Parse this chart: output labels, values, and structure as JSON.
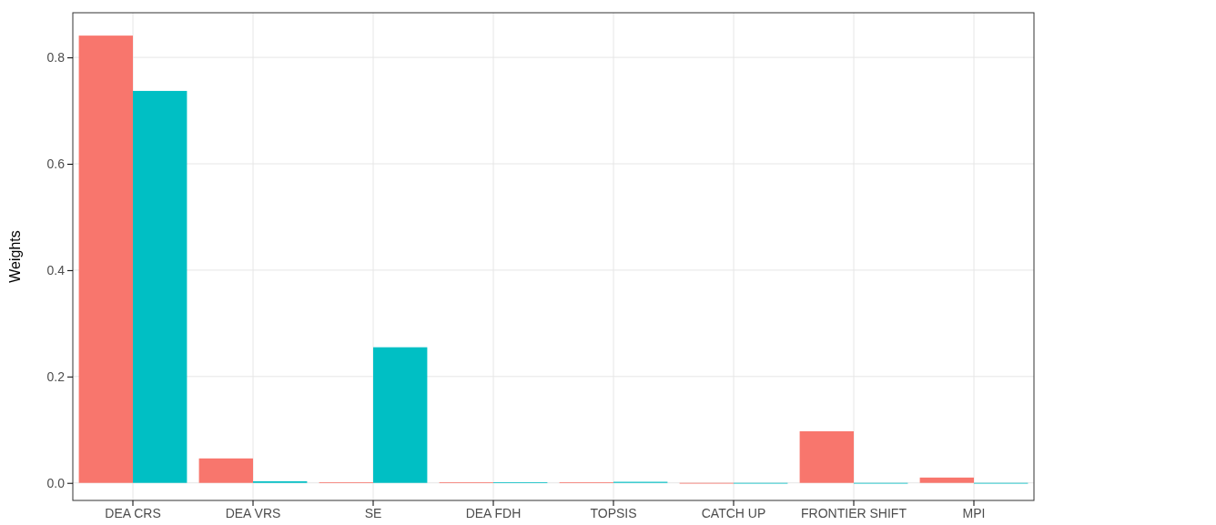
{
  "chart_data": {
    "type": "bar",
    "ylabel": "Weights",
    "categories": [
      "DEA CRS",
      "DEA VRS",
      "SE",
      "DEA FDH",
      "TOPSIS",
      "CATCH UP",
      "FRONTIER SHIFT",
      "MPI"
    ],
    "series": [
      {
        "color": "#f8766d",
        "values": [
          0.841,
          0.046,
          0.001,
          0.001,
          0.001,
          0,
          0.097,
          0.01
        ]
      },
      {
        "color": "#00bfc4",
        "values": [
          0.737,
          0.003,
          0.255,
          0.001,
          0.002,
          0,
          0,
          0
        ]
      }
    ],
    "ylim": [
      -0.033,
      0.884
    ],
    "yticks": [
      {
        "value": 0,
        "label": "0.0"
      },
      0.2,
      0.4,
      0.6,
      0.8
    ],
    "grid": true
  }
}
